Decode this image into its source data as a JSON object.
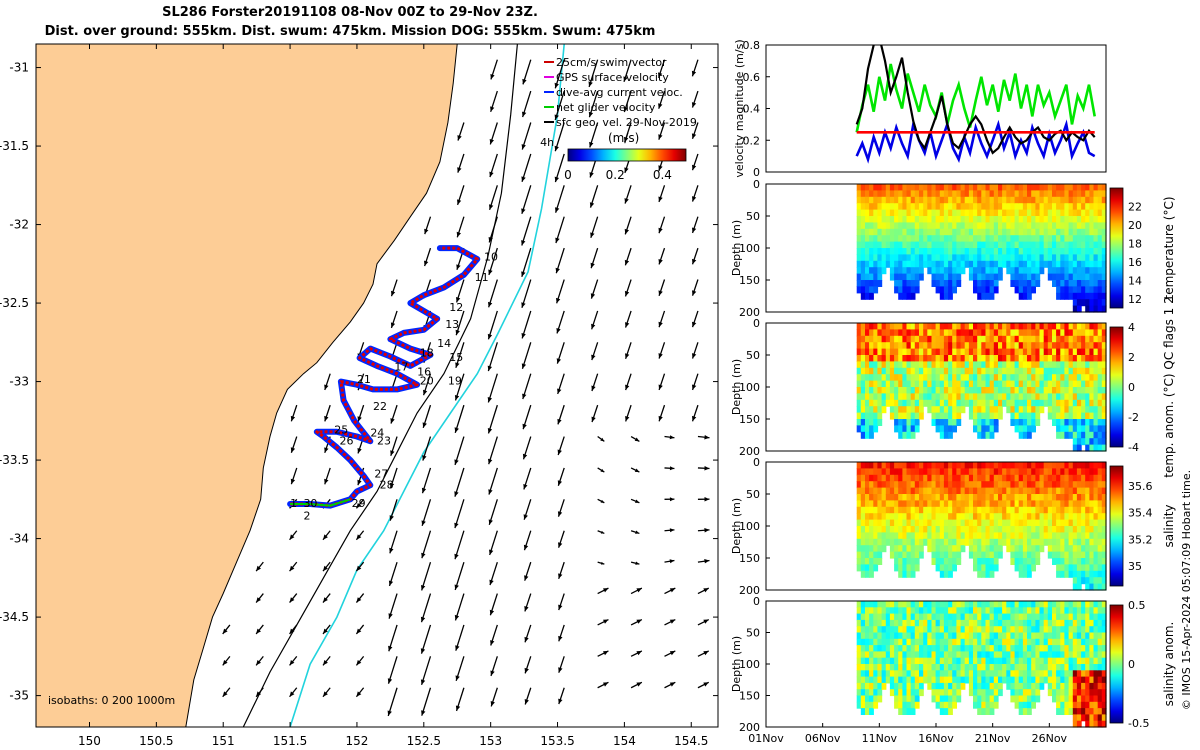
{
  "title": {
    "line1": "SL286 Forster20191108 08-Nov 00Z to 29-Nov 23Z.",
    "line2": "Dist. over ground: 555km. Dist. swum: 475km. Mission DOG: 555km. Swum: 475km"
  },
  "map": {
    "xticks": [
      "150",
      "150.5",
      "151",
      "151.5",
      "152",
      "152.5",
      "153",
      "153.5",
      "154",
      "154.5"
    ],
    "yticks": [
      "-31",
      "-31.5",
      "-32",
      "-32.5",
      "-33",
      "-33.5",
      "-34",
      "-34.5",
      "-35"
    ],
    "xrange": [
      149.6,
      154.7
    ],
    "yrange": [
      -35.2,
      -30.85
    ],
    "isobath_label": "isobaths: 0   200  1000m",
    "day_marker": "4h",
    "legend": [
      "25cm/s swim vector",
      "GPS surface velocity",
      "dive-avg current veloc.",
      "net glider velocity",
      "sfc geo. vel. 29-Nov-2019"
    ],
    "colorbar": {
      "label": "(m/s)",
      "ticks": [
        "0",
        "0.2",
        "0.4"
      ]
    },
    "day_labels": [
      {
        "t": "1",
        "lon": 151.5,
        "lat": -33.8
      },
      {
        "t": "2",
        "lon": 151.6,
        "lat": -33.88
      },
      {
        "t": "10",
        "lon": 152.95,
        "lat": -32.23
      },
      {
        "t": "11",
        "lon": 152.88,
        "lat": -32.36
      },
      {
        "t": "12",
        "lon": 152.69,
        "lat": -32.55
      },
      {
        "t": "13",
        "lon": 152.66,
        "lat": -32.66
      },
      {
        "t": "14",
        "lon": 152.6,
        "lat": -32.78
      },
      {
        "t": "15",
        "lon": 152.69,
        "lat": -32.87
      },
      {
        "t": "16",
        "lon": 152.45,
        "lat": -32.96
      },
      {
        "t": "17",
        "lon": 152.28,
        "lat": -32.93
      },
      {
        "t": "18",
        "lon": 152.47,
        "lat": -32.84
      },
      {
        "t": "19",
        "lon": 152.68,
        "lat": -33.02
      },
      {
        "t": "20",
        "lon": 152.47,
        "lat": -33.02
      },
      {
        "t": "21",
        "lon": 152.0,
        "lat": -33.01
      },
      {
        "t": "22",
        "lon": 152.12,
        "lat": -33.18
      },
      {
        "t": "23",
        "lon": 152.15,
        "lat": -33.4
      },
      {
        "t": "24",
        "lon": 152.1,
        "lat": -33.35
      },
      {
        "t": "25",
        "lon": 151.83,
        "lat": -33.33
      },
      {
        "t": "26",
        "lon": 151.87,
        "lat": -33.4
      },
      {
        "t": "27",
        "lon": 152.13,
        "lat": -33.61
      },
      {
        "t": "28",
        "lon": 152.17,
        "lat": -33.68
      },
      {
        "t": "29",
        "lon": 151.96,
        "lat": -33.8
      },
      {
        "t": "30",
        "lon": 151.6,
        "lat": -33.8
      }
    ]
  },
  "chart_data": [
    {
      "type": "line",
      "ylabel": "velocity magnitude (m/s)",
      "ylim": [
        0,
        0.8
      ],
      "yticks": [
        "0",
        "0.2",
        "0.4",
        "0.6",
        "0.8"
      ],
      "xlim_days": [
        0,
        30
      ],
      "series": [
        {
          "color": "#00e600",
          "x": [
            8,
            8.5,
            9,
            9.5,
            10,
            10.5,
            11,
            11.5,
            12,
            12.5,
            13,
            13.5,
            14,
            14.5,
            15,
            15.5,
            16,
            16.5,
            17,
            17.5,
            18,
            18.5,
            19,
            19.5,
            20,
            20.5,
            21,
            21.5,
            22,
            22.5,
            23,
            23.5,
            24,
            24.5,
            25,
            25.5,
            26,
            26.5,
            27,
            27.5,
            28,
            28.5,
            29
          ],
          "y": [
            0.25,
            0.42,
            0.55,
            0.38,
            0.6,
            0.45,
            0.68,
            0.52,
            0.4,
            0.62,
            0.5,
            0.38,
            0.55,
            0.42,
            0.35,
            0.5,
            0.3,
            0.45,
            0.55,
            0.4,
            0.28,
            0.45,
            0.6,
            0.42,
            0.55,
            0.38,
            0.58,
            0.45,
            0.62,
            0.4,
            0.55,
            0.35,
            0.55,
            0.42,
            0.5,
            0.35,
            0.45,
            0.55,
            0.3,
            0.48,
            0.4,
            0.55,
            0.35
          ]
        },
        {
          "color": "#0000e6",
          "x": [
            8,
            8.5,
            9,
            9.5,
            10,
            10.5,
            11,
            11.5,
            12,
            12.5,
            13,
            13.5,
            14,
            14.5,
            15,
            15.5,
            16,
            16.5,
            17,
            17.5,
            18,
            18.5,
            19,
            19.5,
            20,
            20.5,
            21,
            21.5,
            22,
            22.5,
            23,
            23.5,
            24,
            24.5,
            25,
            25.5,
            26,
            26.5,
            27,
            27.5,
            28,
            28.5,
            29
          ],
          "y": [
            0.1,
            0.18,
            0.08,
            0.22,
            0.12,
            0.25,
            0.15,
            0.28,
            0.18,
            0.1,
            0.3,
            0.2,
            0.12,
            0.25,
            0.1,
            0.2,
            0.3,
            0.15,
            0.08,
            0.22,
            0.12,
            0.28,
            0.18,
            0.1,
            0.2,
            0.3,
            0.15,
            0.25,
            0.1,
            0.2,
            0.12,
            0.28,
            0.18,
            0.1,
            0.24,
            0.12,
            0.2,
            0.3,
            0.1,
            0.18,
            0.25,
            0.12,
            0.1
          ]
        },
        {
          "color": "#000000",
          "x": [
            8,
            8.5,
            9,
            9.5,
            10,
            10.5,
            11,
            11.5,
            12,
            12.5,
            13,
            13.5,
            14,
            14.5,
            15,
            15.5,
            16,
            16.5,
            17,
            17.5,
            18,
            18.5,
            19,
            19.5,
            20,
            20.5,
            21,
            21.5,
            22,
            22.5,
            23,
            23.5,
            24,
            24.5,
            25,
            25.5,
            26,
            26.5,
            27,
            27.5,
            28,
            28.5,
            29
          ],
          "y": [
            0.3,
            0.4,
            0.65,
            0.8,
            0.85,
            0.7,
            0.5,
            0.6,
            0.72,
            0.5,
            0.32,
            0.2,
            0.15,
            0.25,
            0.35,
            0.48,
            0.3,
            0.18,
            0.15,
            0.22,
            0.3,
            0.35,
            0.3,
            0.2,
            0.12,
            0.15,
            0.22,
            0.28,
            0.22,
            0.18,
            0.2,
            0.25,
            0.28,
            0.22,
            0.2,
            0.24,
            0.26,
            0.2,
            0.25,
            0.22,
            0.2,
            0.26,
            0.22
          ]
        },
        {
          "color": "#ff0000",
          "x": [
            8,
            12,
            16,
            20,
            24,
            28,
            29
          ],
          "y": [
            0.25,
            0.25,
            0.25,
            0.25,
            0.25,
            0.25,
            0.25
          ]
        }
      ]
    },
    {
      "type": "heatmap",
      "ylabel": "Depth (m)",
      "yticks": [
        "0",
        "50",
        "100",
        "150",
        "200"
      ],
      "colorbar_label": "temperature (°C)",
      "colorbar_ticks": [
        "12",
        "14",
        "16",
        "18",
        "20",
        "22"
      ],
      "cmin": 11,
      "cmax": 24,
      "offset": -1.2,
      "var": 0
    },
    {
      "type": "heatmap",
      "ylabel": "Depth (m)",
      "yticks": [
        "0",
        "50",
        "100",
        "150",
        "200"
      ],
      "colorbar_label": "temp. anom. (°C)",
      "colorbar_ticks": [
        "-4",
        "-2",
        "0",
        "2",
        "4"
      ],
      "cmin": -4,
      "cmax": 4,
      "offset": 0,
      "var": 1
    },
    {
      "type": "heatmap",
      "ylabel": "Depth (m)",
      "yticks": [
        "0",
        "50",
        "100",
        "150",
        "200"
      ],
      "colorbar_label": "salinity",
      "colorbar_ticks": [
        "35",
        "35.2",
        "35.4",
        "35.6"
      ],
      "cmin": 34.85,
      "cmax": 35.75,
      "offset": 0,
      "var": 2
    },
    {
      "type": "heatmap",
      "ylabel": "Depth (m)",
      "yticks": [
        "0",
        "50",
        "100",
        "150",
        "200"
      ],
      "colorbar_label": "salinity anom.",
      "colorbar_ticks": [
        "-0.5",
        "0",
        "0.5"
      ],
      "cmin": -0.5,
      "cmax": 0.5,
      "offset": 0,
      "var": 3
    }
  ],
  "time_axis": {
    "ticks": [
      "01Nov",
      "06Nov",
      "11Nov",
      "16Nov",
      "21Nov",
      "26Nov"
    ]
  },
  "qc_note": "temp. anom. (°C)  QC flags 1  2",
  "footer": "© IMOS 15-Apr-2024 05:07:09 Hobart time."
}
